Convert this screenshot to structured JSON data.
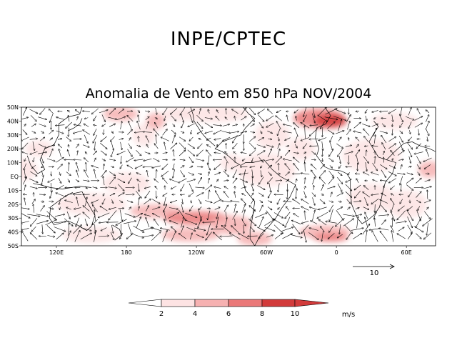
{
  "header": {
    "title": "INPE/CPTEC",
    "subtitle": "Anomalia de Vento em 850 hPa NOV/2004"
  },
  "map": {
    "lat_labels": [
      "50N",
      "40N",
      "30N",
      "20N",
      "10N",
      "EQ",
      "10S",
      "20S",
      "30S",
      "40S",
      "50S"
    ],
    "lon_labels": [
      "120E",
      "180",
      "120W",
      "60W",
      "0",
      "60E"
    ],
    "lon_range": [
      90,
      445
    ],
    "lon_label_values": [
      120,
      180,
      240,
      300,
      360,
      420
    ],
    "lat_range": [
      -50,
      50
    ],
    "shading_colors": [
      "#ffffff",
      "#fde3e3",
      "#f6b1b1",
      "#ea7878",
      "#d23b3b"
    ]
  },
  "reference_vector": {
    "label": "10"
  },
  "colorbar": {
    "labels": [
      "2",
      "4",
      "6",
      "8",
      "10"
    ],
    "unit": "m/s"
  }
}
